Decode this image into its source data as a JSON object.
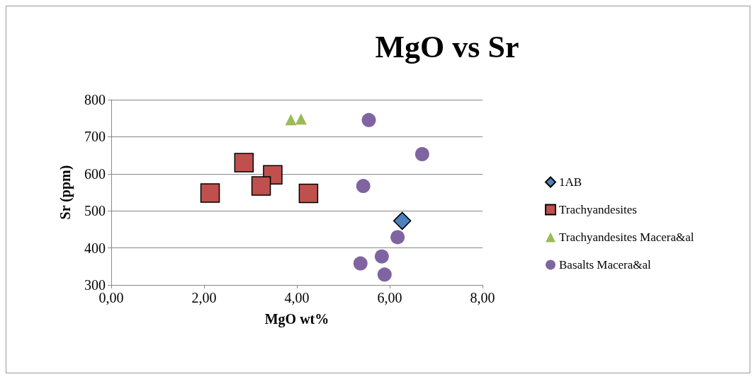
{
  "chart_data": {
    "type": "scatter",
    "title": "MgO vs Sr",
    "xlabel": "MgO wt%",
    "ylabel": "Sr (ppm)",
    "xlim": [
      0,
      8
    ],
    "xticks": [
      {
        "value": 0,
        "label": "0,00"
      },
      {
        "value": 2,
        "label": "2,00"
      },
      {
        "value": 4,
        "label": "4,00"
      },
      {
        "value": 6,
        "label": "6,00"
      },
      {
        "value": 8,
        "label": "8,00"
      }
    ],
    "ylim": [
      300,
      800
    ],
    "yticks": [
      300,
      400,
      500,
      600,
      700,
      800
    ],
    "grid": "y",
    "legend": "right",
    "series": [
      {
        "name": "1AB",
        "color": "#4f81bd",
        "marker": "diamond",
        "x": [
          6.27
        ],
        "values": [
          473
        ]
      },
      {
        "name": "Trachyandesites",
        "color": "#c0504d",
        "marker": "square",
        "x": [
          2.13,
          2.86,
          3.48,
          3.23,
          4.25
        ],
        "values": [
          548,
          630,
          597,
          567,
          547
        ]
      },
      {
        "name": "Trachyandesites Macera&al",
        "color": "#9bbb59",
        "marker": "triangle",
        "x": [
          3.87,
          4.09
        ],
        "values": [
          746,
          748
        ]
      },
      {
        "name": "Basalts Macera&al",
        "color": "#8064a2",
        "marker": "circle",
        "x": [
          5.55,
          6.7,
          5.43,
          6.17,
          5.83,
          5.37,
          5.89
        ],
        "values": [
          745,
          653,
          567,
          429,
          377,
          358,
          328
        ]
      }
    ]
  }
}
